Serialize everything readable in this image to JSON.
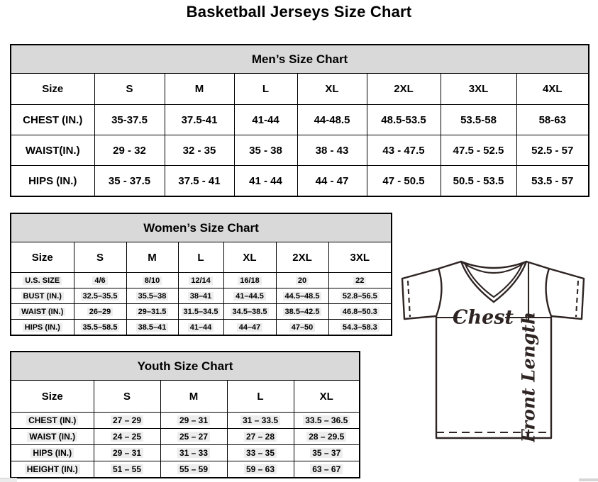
{
  "page": {
    "title": "Basketball Jerseys Size Chart"
  },
  "tables": {
    "men": {
      "title": "Men’s Size Chart",
      "columns": [
        "Size",
        "S",
        "M",
        "L",
        "XL",
        "2XL",
        "3XL",
        "4XL"
      ],
      "rows": [
        {
          "label": "CHEST (IN.)",
          "values": [
            "35-37.5",
            "37.5-41",
            "41-44",
            "44-48.5",
            "48.5-53.5",
            "53.5-58",
            "58-63"
          ]
        },
        {
          "label": "WAIST(IN.)",
          "values": [
            "29 - 32",
            "32 - 35",
            "35 - 38",
            "38 - 43",
            "43 - 47.5",
            "47.5 - 52.5",
            "52.5 - 57"
          ]
        },
        {
          "label": "HIPS (IN.)",
          "values": [
            "35 - 37.5",
            "37.5 - 41",
            "41 - 44",
            "44 - 47",
            "47 - 50.5",
            "50.5 - 53.5",
            "53.5 - 57"
          ]
        }
      ]
    },
    "women": {
      "title": "Women’s Size Chart",
      "columns": [
        "Size",
        "S",
        "M",
        "L",
        "XL",
        "2XL",
        "3XL"
      ],
      "rows": [
        {
          "label": "U.S. SIZE",
          "values": [
            "4/6",
            "8/10",
            "12/14",
            "16/18",
            "20",
            "22"
          ]
        },
        {
          "label": "BUST (IN.)",
          "values": [
            "32.5–35.5",
            "35.5–38",
            "38–41",
            "41–44.5",
            "44.5–48.5",
            "52.8–56.5"
          ]
        },
        {
          "label": "WAIST (IN.)",
          "values": [
            "26–29",
            "29–31.5",
            "31.5–34.5",
            "34.5–38.5",
            "38.5–42.5",
            "46.8–50.3"
          ]
        },
        {
          "label": "HIPS (IN.)",
          "values": [
            "35.5–58.5",
            "38.5–41",
            "41–44",
            "44–47",
            "47–50",
            "54.3–58.3"
          ]
        }
      ]
    },
    "youth": {
      "title": "Youth Size Chart",
      "columns": [
        "Size",
        "S",
        "M",
        "L",
        "XL"
      ],
      "rows": [
        {
          "label": "CHEST (IN.)",
          "values": [
            "27 – 29",
            "29 – 31",
            "31 – 33.5",
            "33.5 – 36.5"
          ]
        },
        {
          "label": "WAIST (IN.)",
          "values": [
            "24 – 25",
            "25 – 27",
            "27 – 28",
            "28 – 29.5"
          ]
        },
        {
          "label": "HIPS (IN.)",
          "values": [
            "29 – 31",
            "31 – 33",
            "33 – 35",
            "35 – 37"
          ]
        },
        {
          "label": "HEIGHT (IN.)",
          "values": [
            "51 – 55",
            "55 – 59",
            "59 – 63",
            "63 – 67"
          ]
        }
      ]
    }
  },
  "diagram": {
    "chest_label": "Chest",
    "front_length_label": "Front Length"
  },
  "colors": {
    "table_band_bg": "#d9d9d9",
    "table_border": "#000000",
    "diagram_ink": "#2e2523",
    "value_highlight": "#ededed"
  }
}
